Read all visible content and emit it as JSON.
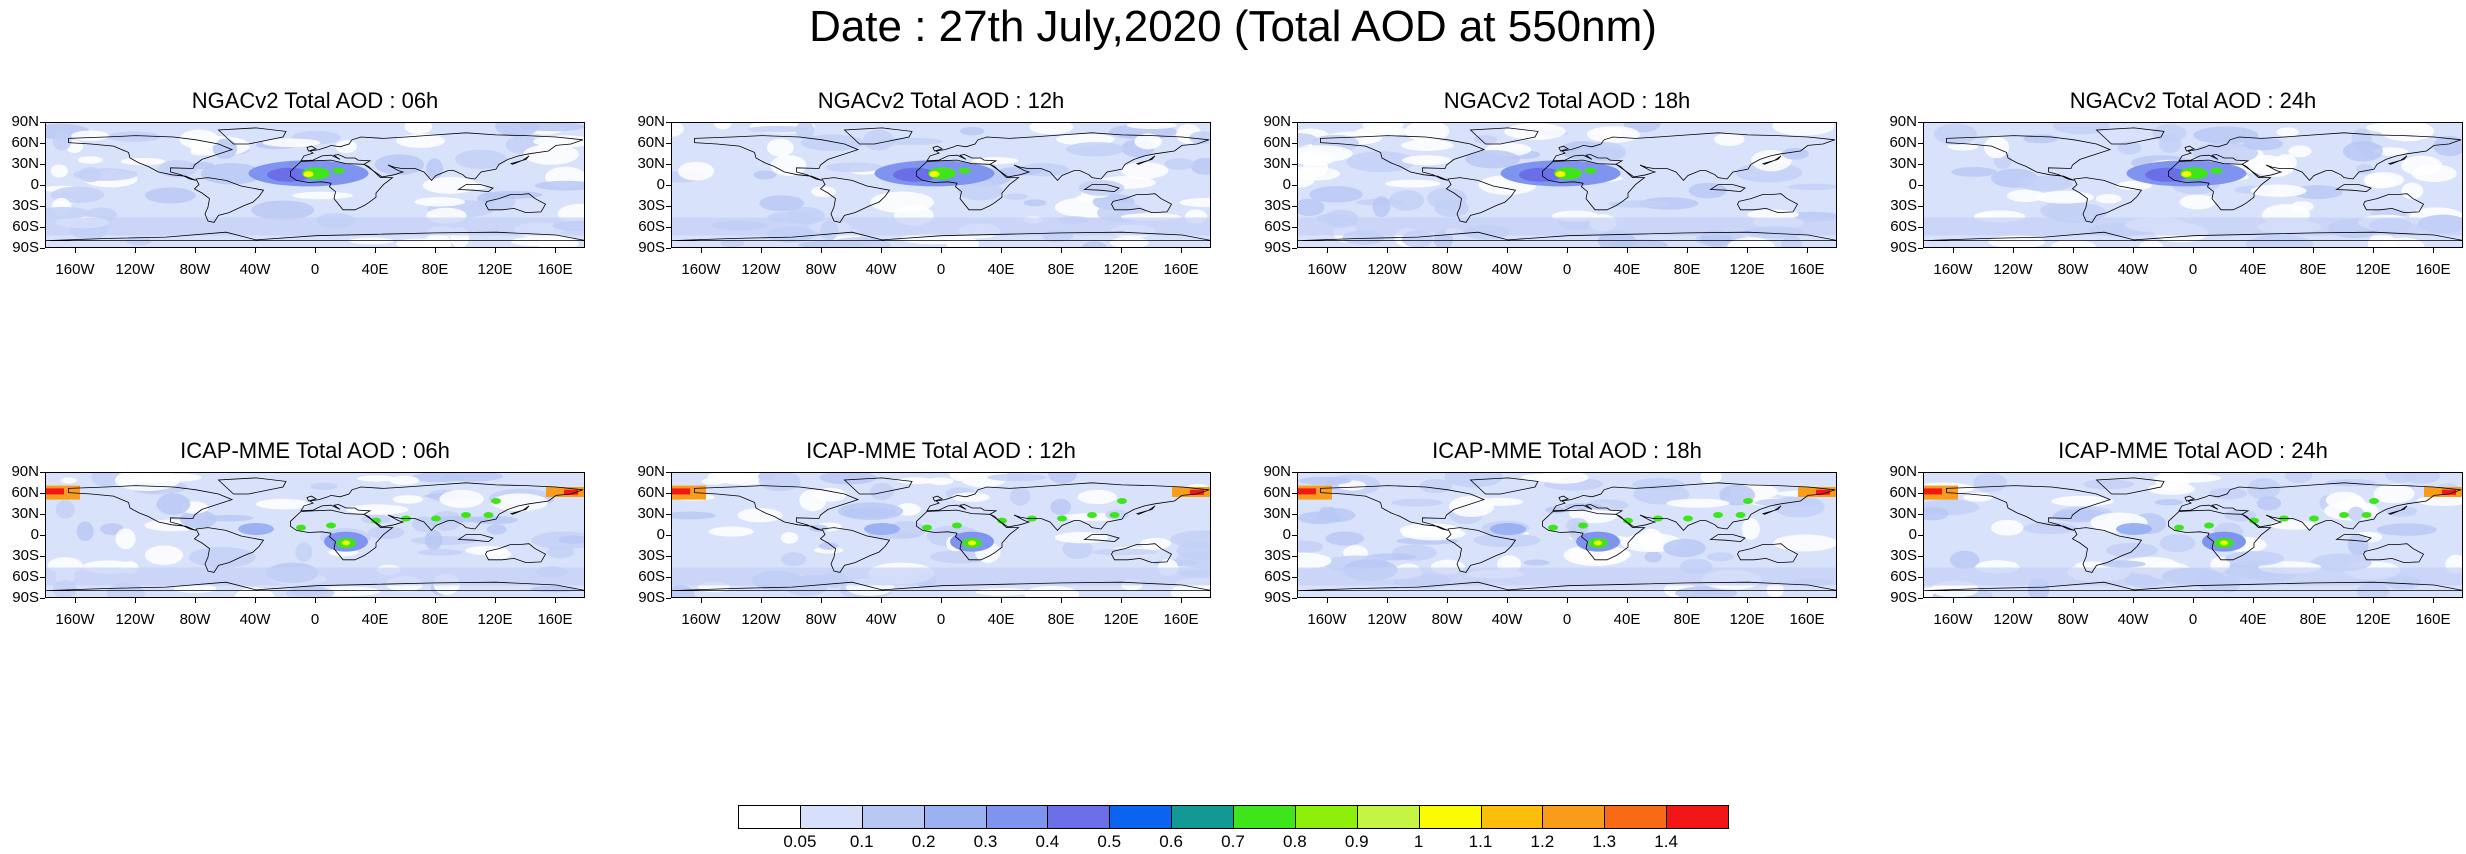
{
  "title": "Date : 27th July,2020 (Total AOD at 550nm)",
  "panels": [
    {
      "title": "NGACv2 Total AOD : 06h",
      "model": "ngac"
    },
    {
      "title": "NGACv2 Total AOD : 12h",
      "model": "ngac"
    },
    {
      "title": "NGACv2 Total AOD : 18h",
      "model": "ngac"
    },
    {
      "title": "NGACv2 Total AOD : 24h",
      "model": "ngac"
    },
    {
      "title": "ICAP-MME Total AOD : 06h",
      "model": "icap"
    },
    {
      "title": "ICAP-MME Total AOD : 12h",
      "model": "icap"
    },
    {
      "title": "ICAP-MME Total AOD : 18h",
      "model": "icap"
    },
    {
      "title": "ICAP-MME Total AOD : 24h",
      "model": "icap"
    }
  ],
  "axes": {
    "lat_labels": [
      "90N",
      "60N",
      "30N",
      "0",
      "30S",
      "60S",
      "90S"
    ],
    "lon_labels": [
      "160W",
      "120W",
      "80W",
      "40W",
      "0",
      "40E",
      "80E",
      "120E",
      "160E"
    ]
  },
  "colorbar": {
    "labels": [
      "0.05",
      "0.1",
      "0.2",
      "0.3",
      "0.4",
      "0.5",
      "0.6",
      "0.7",
      "0.8",
      "0.9",
      "1",
      "1.1",
      "1.2",
      "1.3",
      "1.4"
    ],
    "colors": [
      "#ffffff",
      "#d6e0fa",
      "#b8c8f5",
      "#9ab1f2",
      "#7f94ee",
      "#6a6fe8",
      "#0a64f0",
      "#139994",
      "#3ee51a",
      "#8ef00a",
      "#c4f545",
      "#fafa00",
      "#fcbe0a",
      "#f99c1a",
      "#f86a14",
      "#f21616"
    ]
  },
  "map_features": {
    "background": "#d9e2fb",
    "ocean_band": "#c3d0f6",
    "plume": "#7f94ee",
    "dust_hot": "#3ee51a",
    "dust_peak": "#fafa00",
    "fire": "#f21616",
    "fire_orange": "#f99c1a",
    "coast": "#000000"
  }
}
